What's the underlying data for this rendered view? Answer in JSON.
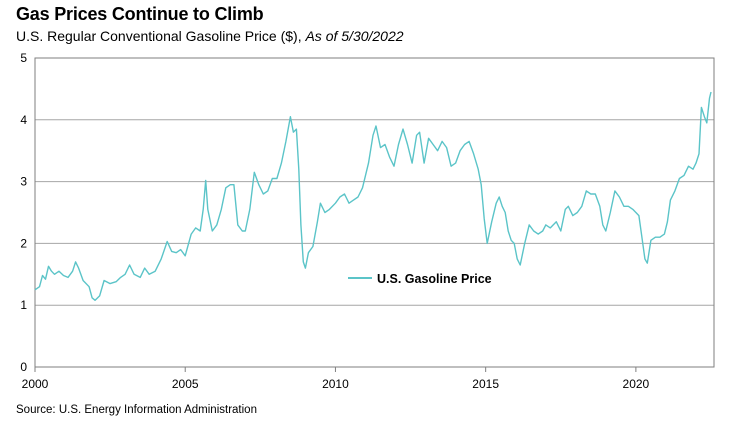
{
  "header": {
    "title": "Gas Prices Continue to Climb",
    "subtitle": "U.S. Regular Conventional Gasoline Price ($),",
    "as_of": "As of 5/30/2022"
  },
  "footer": {
    "source": "Source: U.S. Energy Information Administration"
  },
  "colors": {
    "line": "#5bc4c8",
    "grid": "#a6a6a6",
    "frame": "#7f7f7f"
  },
  "chart_data": {
    "type": "line",
    "title": "Gas Prices Continue to Climb",
    "xlabel": "",
    "ylabel": "",
    "xlim": [
      2000,
      2022.6
    ],
    "ylim": [
      0,
      5
    ],
    "x_ticks": [
      2000,
      2005,
      2010,
      2015,
      2020
    ],
    "y_ticks": [
      0,
      1,
      2,
      3,
      4,
      5
    ],
    "grid": "horizontal",
    "legend_position": "center",
    "series": [
      {
        "name": "U.S. Gasoline Price",
        "points": [
          [
            2000.0,
            1.25
          ],
          [
            2000.15,
            1.3
          ],
          [
            2000.25,
            1.48
          ],
          [
            2000.35,
            1.42
          ],
          [
            2000.45,
            1.63
          ],
          [
            2000.55,
            1.55
          ],
          [
            2000.65,
            1.5
          ],
          [
            2000.8,
            1.55
          ],
          [
            2000.95,
            1.48
          ],
          [
            2001.1,
            1.45
          ],
          [
            2001.25,
            1.55
          ],
          [
            2001.35,
            1.7
          ],
          [
            2001.45,
            1.6
          ],
          [
            2001.6,
            1.4
          ],
          [
            2001.8,
            1.3
          ],
          [
            2001.9,
            1.12
          ],
          [
            2002.0,
            1.08
          ],
          [
            2002.15,
            1.15
          ],
          [
            2002.3,
            1.4
          ],
          [
            2002.5,
            1.35
          ],
          [
            2002.7,
            1.38
          ],
          [
            2002.85,
            1.45
          ],
          [
            2003.0,
            1.5
          ],
          [
            2003.15,
            1.65
          ],
          [
            2003.3,
            1.5
          ],
          [
            2003.5,
            1.45
          ],
          [
            2003.65,
            1.6
          ],
          [
            2003.8,
            1.5
          ],
          [
            2004.0,
            1.55
          ],
          [
            2004.2,
            1.75
          ],
          [
            2004.4,
            2.03
          ],
          [
            2004.55,
            1.87
          ],
          [
            2004.7,
            1.85
          ],
          [
            2004.85,
            1.9
          ],
          [
            2005.0,
            1.8
          ],
          [
            2005.2,
            2.15
          ],
          [
            2005.35,
            2.25
          ],
          [
            2005.5,
            2.2
          ],
          [
            2005.6,
            2.55
          ],
          [
            2005.68,
            3.02
          ],
          [
            2005.75,
            2.55
          ],
          [
            2005.9,
            2.2
          ],
          [
            2006.05,
            2.3
          ],
          [
            2006.2,
            2.55
          ],
          [
            2006.35,
            2.9
          ],
          [
            2006.5,
            2.95
          ],
          [
            2006.62,
            2.95
          ],
          [
            2006.75,
            2.3
          ],
          [
            2006.9,
            2.2
          ],
          [
            2007.0,
            2.2
          ],
          [
            2007.15,
            2.55
          ],
          [
            2007.3,
            3.15
          ],
          [
            2007.45,
            2.95
          ],
          [
            2007.6,
            2.8
          ],
          [
            2007.75,
            2.85
          ],
          [
            2007.9,
            3.05
          ],
          [
            2008.05,
            3.05
          ],
          [
            2008.2,
            3.3
          ],
          [
            2008.35,
            3.65
          ],
          [
            2008.5,
            4.05
          ],
          [
            2008.6,
            3.8
          ],
          [
            2008.7,
            3.85
          ],
          [
            2008.78,
            3.2
          ],
          [
            2008.85,
            2.3
          ],
          [
            2008.93,
            1.7
          ],
          [
            2009.0,
            1.6
          ],
          [
            2009.1,
            1.85
          ],
          [
            2009.25,
            1.95
          ],
          [
            2009.4,
            2.35
          ],
          [
            2009.5,
            2.65
          ],
          [
            2009.65,
            2.5
          ],
          [
            2009.8,
            2.55
          ],
          [
            2010.0,
            2.65
          ],
          [
            2010.15,
            2.75
          ],
          [
            2010.3,
            2.8
          ],
          [
            2010.45,
            2.65
          ],
          [
            2010.6,
            2.7
          ],
          [
            2010.75,
            2.75
          ],
          [
            2010.9,
            2.9
          ],
          [
            2011.0,
            3.1
          ],
          [
            2011.1,
            3.3
          ],
          [
            2011.25,
            3.75
          ],
          [
            2011.35,
            3.9
          ],
          [
            2011.5,
            3.55
          ],
          [
            2011.65,
            3.6
          ],
          [
            2011.8,
            3.4
          ],
          [
            2011.95,
            3.25
          ],
          [
            2012.1,
            3.6
          ],
          [
            2012.25,
            3.85
          ],
          [
            2012.4,
            3.6
          ],
          [
            2012.55,
            3.3
          ],
          [
            2012.7,
            3.75
          ],
          [
            2012.8,
            3.8
          ],
          [
            2012.95,
            3.3
          ],
          [
            2013.1,
            3.7
          ],
          [
            2013.25,
            3.6
          ],
          [
            2013.4,
            3.5
          ],
          [
            2013.55,
            3.65
          ],
          [
            2013.7,
            3.55
          ],
          [
            2013.85,
            3.25
          ],
          [
            2014.0,
            3.3
          ],
          [
            2014.15,
            3.5
          ],
          [
            2014.3,
            3.6
          ],
          [
            2014.45,
            3.65
          ],
          [
            2014.6,
            3.45
          ],
          [
            2014.75,
            3.2
          ],
          [
            2014.85,
            2.95
          ],
          [
            2014.95,
            2.4
          ],
          [
            2015.05,
            2.0
          ],
          [
            2015.2,
            2.35
          ],
          [
            2015.35,
            2.65
          ],
          [
            2015.45,
            2.75
          ],
          [
            2015.55,
            2.6
          ],
          [
            2015.65,
            2.5
          ],
          [
            2015.75,
            2.2
          ],
          [
            2015.85,
            2.05
          ],
          [
            2015.95,
            2.0
          ],
          [
            2016.05,
            1.75
          ],
          [
            2016.15,
            1.65
          ],
          [
            2016.3,
            2.0
          ],
          [
            2016.45,
            2.3
          ],
          [
            2016.6,
            2.2
          ],
          [
            2016.75,
            2.15
          ],
          [
            2016.9,
            2.2
          ],
          [
            2017.0,
            2.3
          ],
          [
            2017.15,
            2.25
          ],
          [
            2017.35,
            2.35
          ],
          [
            2017.5,
            2.2
          ],
          [
            2017.65,
            2.55
          ],
          [
            2017.75,
            2.6
          ],
          [
            2017.9,
            2.45
          ],
          [
            2018.05,
            2.5
          ],
          [
            2018.2,
            2.6
          ],
          [
            2018.35,
            2.85
          ],
          [
            2018.5,
            2.8
          ],
          [
            2018.65,
            2.8
          ],
          [
            2018.8,
            2.6
          ],
          [
            2018.9,
            2.3
          ],
          [
            2019.0,
            2.2
          ],
          [
            2019.15,
            2.5
          ],
          [
            2019.3,
            2.85
          ],
          [
            2019.45,
            2.75
          ],
          [
            2019.6,
            2.6
          ],
          [
            2019.75,
            2.6
          ],
          [
            2019.9,
            2.55
          ],
          [
            2020.0,
            2.5
          ],
          [
            2020.1,
            2.45
          ],
          [
            2020.2,
            2.1
          ],
          [
            2020.3,
            1.75
          ],
          [
            2020.38,
            1.68
          ],
          [
            2020.5,
            2.05
          ],
          [
            2020.65,
            2.1
          ],
          [
            2020.8,
            2.1
          ],
          [
            2020.95,
            2.15
          ],
          [
            2021.05,
            2.35
          ],
          [
            2021.15,
            2.7
          ],
          [
            2021.3,
            2.85
          ],
          [
            2021.45,
            3.05
          ],
          [
            2021.6,
            3.1
          ],
          [
            2021.75,
            3.25
          ],
          [
            2021.9,
            3.2
          ],
          [
            2022.0,
            3.3
          ],
          [
            2022.1,
            3.45
          ],
          [
            2022.18,
            4.2
          ],
          [
            2022.28,
            4.05
          ],
          [
            2022.36,
            3.95
          ],
          [
            2022.45,
            4.35
          ],
          [
            2022.5,
            4.45
          ]
        ]
      }
    ]
  }
}
